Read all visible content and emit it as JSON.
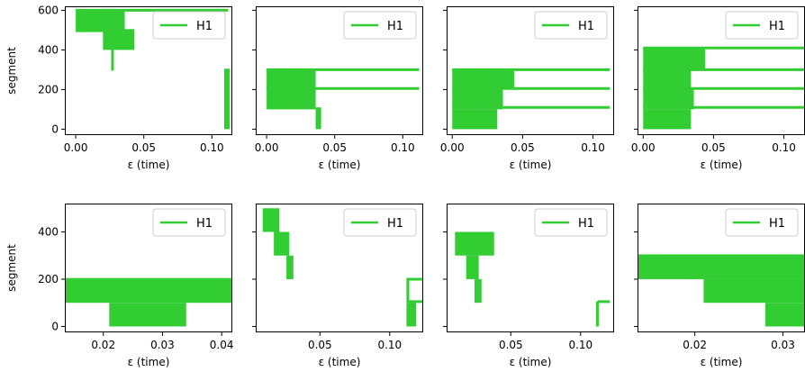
{
  "chart_data": [
    {
      "type": "area",
      "xlabel": "ε (time)",
      "ylabel": "segment",
      "xlim": [
        -0.008,
        0.115
      ],
      "ylim": [
        -30,
        620
      ],
      "xticks": [
        0.0,
        0.05,
        0.1
      ],
      "xtick_labels": [
        "0.00",
        "0.05",
        "0.10"
      ],
      "yticks": [
        0,
        200,
        400,
        600
      ],
      "ytick_labels": [
        "0",
        "200",
        "400",
        "600"
      ],
      "legend": {
        "label": "H1",
        "color": "#32cd32",
        "placement": "top-right"
      },
      "series_color": "#32cd32",
      "bars": [
        {
          "x0": 0.0,
          "x1": 0.036,
          "y0": 490,
          "y1": 600
        },
        {
          "x0": 0.02,
          "x1": 0.043,
          "y0": 400,
          "y1": 505
        },
        {
          "x0": 0.026,
          "x1": 0.028,
          "y0": 295,
          "y1": 400
        },
        {
          "x0": 0.109,
          "x1": 0.113,
          "y0": 0,
          "y1": 305
        }
      ],
      "lines": [
        {
          "x0": 0.0,
          "x1": 0.112,
          "y": 600
        }
      ]
    },
    {
      "type": "area",
      "xlabel": "ε (time)",
      "ylabel": "",
      "xlim": [
        -0.008,
        0.115
      ],
      "ylim": [
        -30,
        620
      ],
      "xticks": [
        0.0,
        0.05,
        0.1
      ],
      "xtick_labels": [
        "0.00",
        "0.05",
        "0.10"
      ],
      "yticks": [
        0,
        200,
        400,
        600
      ],
      "ytick_labels": [],
      "legend": {
        "label": "H1",
        "color": "#32cd32",
        "placement": "top-right"
      },
      "series_color": "#32cd32",
      "bars": [
        {
          "x0": 0.0,
          "x1": 0.036,
          "y0": 100,
          "y1": 305
        },
        {
          "x0": 0.036,
          "x1": 0.04,
          "y0": 0,
          "y1": 110
        }
      ],
      "lines": [
        {
          "x0": 0.0,
          "x1": 0.112,
          "y": 300
        },
        {
          "x0": 0.0,
          "x1": 0.112,
          "y": 205
        }
      ]
    },
    {
      "type": "area",
      "xlabel": "ε (time)",
      "ylabel": "",
      "xlim": [
        -0.004,
        0.115
      ],
      "ylim": [
        -30,
        620
      ],
      "xticks": [
        0.0,
        0.05,
        0.1
      ],
      "xtick_labels": [
        "0.00",
        "0.05",
        "0.10"
      ],
      "yticks": [
        0,
        200,
        400,
        600
      ],
      "ytick_labels": [],
      "legend": {
        "label": "H1",
        "color": "#32cd32",
        "placement": "top-right"
      },
      "series_color": "#32cd32",
      "bars": [
        {
          "x0": 0.0,
          "x1": 0.044,
          "y0": 200,
          "y1": 305
        },
        {
          "x0": 0.0,
          "x1": 0.036,
          "y0": 100,
          "y1": 200
        },
        {
          "x0": 0.0,
          "x1": 0.032,
          "y0": 0,
          "y1": 100
        }
      ],
      "lines": [
        {
          "x0": 0.0,
          "x1": 0.112,
          "y": 300
        },
        {
          "x0": 0.0,
          "x1": 0.112,
          "y": 205
        },
        {
          "x0": 0.0,
          "x1": 0.112,
          "y": 110
        }
      ]
    },
    {
      "type": "area",
      "xlabel": "ε (time)",
      "ylabel": "",
      "xlim": [
        -0.004,
        0.115
      ],
      "ylim": [
        -30,
        620
      ],
      "xticks": [
        0.0,
        0.05,
        0.1
      ],
      "xtick_labels": [
        "0.00",
        "0.05",
        "0.10"
      ],
      "yticks": [
        0,
        200,
        400,
        600
      ],
      "ytick_labels": [],
      "legend": {
        "label": "H1",
        "color": "#32cd32",
        "placement": "top-right"
      },
      "series_color": "#32cd32",
      "bars": [
        {
          "x0": 0.0,
          "x1": 0.044,
          "y0": 300,
          "y1": 410
        },
        {
          "x0": 0.0,
          "x1": 0.034,
          "y0": 200,
          "y1": 300
        },
        {
          "x0": 0.0,
          "x1": 0.036,
          "y0": 100,
          "y1": 200
        },
        {
          "x0": 0.0,
          "x1": 0.034,
          "y0": 0,
          "y1": 100
        }
      ],
      "lines": [
        {
          "x0": 0.0,
          "x1": 0.115,
          "y": 410
        },
        {
          "x0": 0.0,
          "x1": 0.115,
          "y": 300
        },
        {
          "x0": 0.0,
          "x1": 0.115,
          "y": 205
        },
        {
          "x0": 0.0,
          "x1": 0.115,
          "y": 110
        }
      ]
    },
    {
      "type": "area",
      "xlabel": "ε (time)",
      "ylabel": "segment",
      "xlim": [
        0.0135,
        0.0418
      ],
      "ylim": [
        -25,
        520
      ],
      "xticks": [
        0.02,
        0.03,
        0.04
      ],
      "xtick_labels": [
        "0.02",
        "0.03",
        "0.04"
      ],
      "yticks": [
        0,
        200,
        400
      ],
      "ytick_labels": [
        "0",
        "200",
        "400"
      ],
      "legend": {
        "label": "H1",
        "color": "#32cd32",
        "placement": "top-right"
      },
      "series_color": "#32cd32",
      "bars": [
        {
          "x0": 0.0135,
          "x1": 0.0418,
          "y0": 100,
          "y1": 205
        },
        {
          "x0": 0.021,
          "x1": 0.034,
          "y0": 0,
          "y1": 100
        }
      ],
      "lines": []
    },
    {
      "type": "area",
      "xlabel": "ε (time)",
      "ylabel": "",
      "xlim": [
        0.004,
        0.124
      ],
      "ylim": [
        -25,
        520
      ],
      "xticks": [
        0.05,
        0.1
      ],
      "xtick_labels": [
        "0.05",
        "0.10"
      ],
      "yticks": [
        0,
        200,
        400
      ],
      "ytick_labels": [],
      "legend": {
        "label": "H1",
        "color": "#32cd32",
        "placement": "top-right"
      },
      "series_color": "#32cd32",
      "bars": [
        {
          "x0": 0.009,
          "x1": 0.021,
          "y0": 400,
          "y1": 500
        },
        {
          "x0": 0.017,
          "x1": 0.028,
          "y0": 300,
          "y1": 400
        },
        {
          "x0": 0.026,
          "x1": 0.031,
          "y0": 200,
          "y1": 300
        },
        {
          "x0": 0.112,
          "x1": 0.114,
          "y0": 100,
          "y1": 200
        },
        {
          "x0": 0.112,
          "x1": 0.119,
          "y0": 0,
          "y1": 100
        }
      ],
      "lines": [
        {
          "x0": 0.112,
          "x1": 0.124,
          "y": 200
        },
        {
          "x0": 0.114,
          "x1": 0.124,
          "y": 105
        }
      ]
    },
    {
      "type": "area",
      "xlabel": "ε (time)",
      "ylabel": "",
      "xlim": [
        0.004,
        0.124
      ],
      "ylim": [
        -25,
        520
      ],
      "xticks": [
        0.05,
        0.1
      ],
      "xtick_labels": [
        "0.05",
        "0.10"
      ],
      "yticks": [
        0,
        200,
        400
      ],
      "ytick_labels": [],
      "legend": {
        "label": "H1",
        "color": "#32cd32",
        "placement": "top-right"
      },
      "series_color": "#32cd32",
      "bars": [
        {
          "x0": 0.01,
          "x1": 0.038,
          "y0": 300,
          "y1": 400
        },
        {
          "x0": 0.018,
          "x1": 0.027,
          "y0": 200,
          "y1": 300
        },
        {
          "x0": 0.024,
          "x1": 0.029,
          "y0": 100,
          "y1": 200
        },
        {
          "x0": 0.111,
          "x1": 0.113,
          "y0": 0,
          "y1": 105
        }
      ],
      "lines": [
        {
          "x0": 0.112,
          "x1": 0.121,
          "y": 105
        }
      ]
    },
    {
      "type": "area",
      "xlabel": "ε (time)",
      "ylabel": "",
      "xlim": [
        0.0135,
        0.0325
      ],
      "ylim": [
        -25,
        520
      ],
      "xticks": [
        0.02,
        0.03
      ],
      "xtick_labels": [
        "0.02",
        "0.03"
      ],
      "yticks": [
        0,
        200,
        400
      ],
      "ytick_labels": [],
      "legend": {
        "label": "H1",
        "color": "#32cd32",
        "placement": "top-right"
      },
      "series_color": "#32cd32",
      "bars": [
        {
          "x0": 0.0135,
          "x1": 0.0325,
          "y0": 200,
          "y1": 305
        },
        {
          "x0": 0.021,
          "x1": 0.0325,
          "y0": 100,
          "y1": 200
        },
        {
          "x0": 0.028,
          "x1": 0.0325,
          "y0": 0,
          "y1": 100
        }
      ],
      "lines": []
    }
  ]
}
